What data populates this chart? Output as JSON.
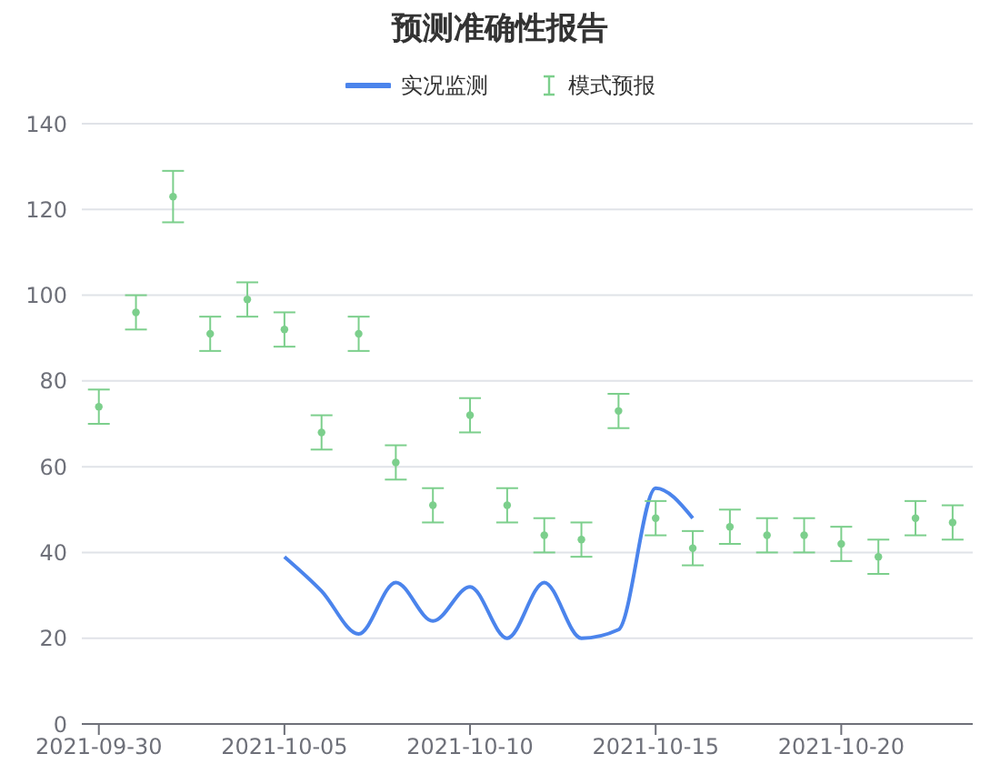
{
  "chart_data": {
    "type": "line",
    "title": "预测准确性报告",
    "legend": "top",
    "grid": "y",
    "x": [
      "2021-09-30",
      "2021-10-01",
      "2021-10-02",
      "2021-10-03",
      "2021-10-04",
      "2021-10-05",
      "2021-10-06",
      "2021-10-07",
      "2021-10-08",
      "2021-10-09",
      "2021-10-10",
      "2021-10-11",
      "2021-10-12",
      "2021-10-13",
      "2021-10-14",
      "2021-10-15",
      "2021-10-16",
      "2021-10-17",
      "2021-10-18",
      "2021-10-19",
      "2021-10-20",
      "2021-10-21",
      "2021-10-22",
      "2021-10-23"
    ],
    "xlim": [
      "2021-09-29T13:00",
      "2021-10-23T13:00"
    ],
    "xticks": [
      "2021-09-30",
      "2021-10-05",
      "2021-10-10",
      "2021-10-15",
      "2021-10-20"
    ],
    "ylim": [
      0,
      140
    ],
    "yticks": [
      0,
      20,
      40,
      60,
      80,
      100,
      120,
      140
    ],
    "series": [
      {
        "name": "实况监测",
        "type": "line",
        "color": "#4b84ec",
        "marker": "none",
        "values": [
          null,
          null,
          null,
          null,
          null,
          39,
          31,
          21,
          33,
          24,
          32,
          20,
          33,
          20,
          22,
          55,
          48,
          null,
          null,
          null,
          null,
          null,
          null,
          null
        ]
      },
      {
        "name": "模式预报",
        "type": "scatter",
        "color": "#7ccf8c",
        "marker": "circle",
        "values": [
          74,
          96,
          123,
          91,
          99,
          92,
          68,
          91,
          61,
          51,
          72,
          51,
          44,
          43,
          73,
          48,
          41,
          46,
          44,
          44,
          42,
          39,
          48,
          47
        ],
        "errors": [
          4,
          4,
          6,
          4,
          4,
          4,
          4,
          4,
          4,
          4,
          4,
          4,
          4,
          4,
          4,
          4,
          4,
          4,
          4,
          4,
          4,
          4,
          4,
          4
        ]
      }
    ]
  }
}
